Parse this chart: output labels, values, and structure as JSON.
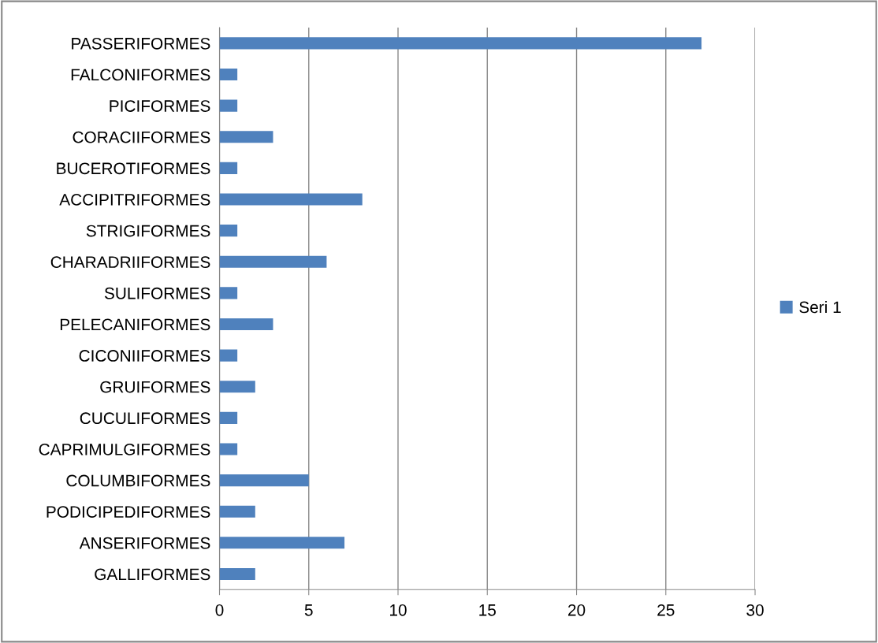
{
  "chart_data": {
    "type": "bar",
    "orientation": "horizontal",
    "categories": [
      "PASSERIFORMES",
      "FALCONIFORMES",
      "PICIFORMES",
      "CORACIIFORMES",
      "BUCEROTIFORMES",
      "ACCIPITRIFORMES",
      "STRIGIFORMES",
      "CHARADRIIFORMES",
      "SULIFORMES",
      "PELECANIFORMES",
      "CICONIIFORMES",
      "GRUIFORMES",
      "CUCULIFORMES",
      "CAPRIMULGIFORMES",
      "COLUMBIFORMES",
      "PODICIPEDIFORMES",
      "ANSERIFORMES",
      "GALLIFORMES"
    ],
    "series": [
      {
        "name": "Seri 1",
        "color": "#4f81bd",
        "values": [
          27,
          1,
          1,
          3,
          1,
          8,
          1,
          6,
          1,
          3,
          1,
          2,
          1,
          1,
          5,
          2,
          7,
          2
        ]
      }
    ],
    "xlim": [
      0,
      30
    ],
    "xticks": [
      0,
      5,
      10,
      15,
      20,
      25,
      30
    ],
    "grid": "x",
    "legend": "right"
  }
}
